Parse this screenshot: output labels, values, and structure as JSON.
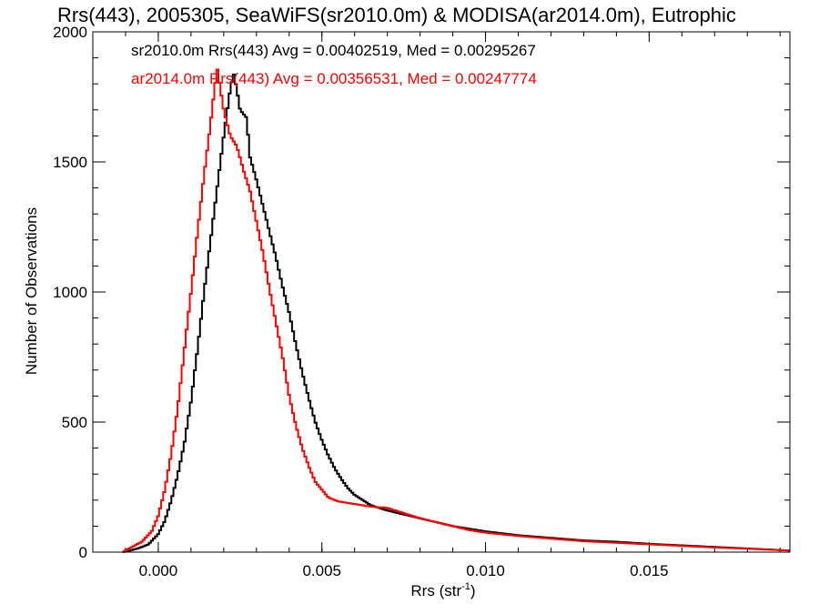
{
  "chart_data": {
    "type": "line",
    "title": "Rrs(443), 2005305, SeaWiFS(sr2010.0m) & MODISA(ar2014.0m), Eutrophic",
    "xlabel_main": "Rrs (str",
    "xlabel_sup": "-1",
    "xlabel_end": ")",
    "ylabel": "Number of Observations",
    "xlim": [
      -0.002,
      0.0193
    ],
    "ylim": [
      0,
      2000
    ],
    "xticks": [
      0.0,
      0.005,
      0.01,
      0.015
    ],
    "xtick_labels": [
      "0.000",
      "0.005",
      "0.010",
      "0.015"
    ],
    "yticks": [
      0,
      500,
      1000,
      1500,
      2000
    ],
    "ytick_labels": [
      "0",
      "500",
      "1000",
      "1500",
      "2000"
    ],
    "series": [
      {
        "name": "sr2010.0m",
        "color": "#000000",
        "annotation": "sr2010.0m Rrs(443) Avg = 0.00402519, Med = 0.00295267",
        "points": [
          [
            -0.0011,
            0
          ],
          [
            -0.0009,
            5
          ],
          [
            -0.0006,
            15
          ],
          [
            -0.0003,
            30
          ],
          [
            0.0,
            70
          ],
          [
            0.0002,
            120
          ],
          [
            0.0004,
            200
          ],
          [
            0.0006,
            300
          ],
          [
            0.0008,
            420
          ],
          [
            0.001,
            580
          ],
          [
            0.0012,
            780
          ],
          [
            0.0014,
            1000
          ],
          [
            0.0016,
            1200
          ],
          [
            0.0018,
            1400
          ],
          [
            0.002,
            1600
          ],
          [
            0.0022,
            1780
          ],
          [
            0.0023,
            1840
          ],
          [
            0.0024,
            1780
          ],
          [
            0.0025,
            1700
          ],
          [
            0.0027,
            1670
          ],
          [
            0.0028,
            1520
          ],
          [
            0.003,
            1430
          ],
          [
            0.0032,
            1330
          ],
          [
            0.0034,
            1230
          ],
          [
            0.0036,
            1130
          ],
          [
            0.0038,
            1020
          ],
          [
            0.004,
            920
          ],
          [
            0.0042,
            800
          ],
          [
            0.0044,
            690
          ],
          [
            0.0046,
            590
          ],
          [
            0.0048,
            500
          ],
          [
            0.005,
            430
          ],
          [
            0.0052,
            370
          ],
          [
            0.0054,
            320
          ],
          [
            0.0056,
            280
          ],
          [
            0.0058,
            245
          ],
          [
            0.006,
            220
          ],
          [
            0.0065,
            180
          ],
          [
            0.007,
            160
          ],
          [
            0.0075,
            145
          ],
          [
            0.008,
            130
          ],
          [
            0.0085,
            115
          ],
          [
            0.009,
            100
          ],
          [
            0.0095,
            90
          ],
          [
            0.01,
            80
          ],
          [
            0.011,
            65
          ],
          [
            0.012,
            55
          ],
          [
            0.013,
            45
          ],
          [
            0.014,
            40
          ],
          [
            0.015,
            32
          ],
          [
            0.016,
            26
          ],
          [
            0.017,
            20
          ],
          [
            0.018,
            14
          ],
          [
            0.019,
            8
          ],
          [
            0.0193,
            6
          ]
        ]
      },
      {
        "name": "ar2014.0m",
        "color": "#ff0000",
        "annotation": "ar2014.0m Rrs(443) Avg = 0.00356531, Med = 0.00247774",
        "points": [
          [
            -0.0011,
            0
          ],
          [
            -0.0008,
            20
          ],
          [
            -0.0005,
            40
          ],
          [
            -0.0002,
            80
          ],
          [
            0.0,
            140
          ],
          [
            0.0002,
            240
          ],
          [
            0.0004,
            380
          ],
          [
            0.0006,
            560
          ],
          [
            0.0008,
            780
          ],
          [
            0.001,
            1000
          ],
          [
            0.0012,
            1230
          ],
          [
            0.0014,
            1450
          ],
          [
            0.0016,
            1650
          ],
          [
            0.0017,
            1760
          ],
          [
            0.0018,
            1860
          ],
          [
            0.0019,
            1780
          ],
          [
            0.002,
            1700
          ],
          [
            0.0022,
            1600
          ],
          [
            0.0024,
            1560
          ],
          [
            0.0026,
            1470
          ],
          [
            0.0028,
            1390
          ],
          [
            0.003,
            1270
          ],
          [
            0.0032,
            1150
          ],
          [
            0.0034,
            1010
          ],
          [
            0.0036,
            880
          ],
          [
            0.0038,
            750
          ],
          [
            0.004,
            600
          ],
          [
            0.0042,
            490
          ],
          [
            0.0044,
            400
          ],
          [
            0.0046,
            330
          ],
          [
            0.0048,
            270
          ],
          [
            0.005,
            240
          ],
          [
            0.0052,
            210
          ],
          [
            0.0055,
            195
          ],
          [
            0.006,
            185
          ],
          [
            0.0065,
            175
          ],
          [
            0.007,
            170
          ],
          [
            0.0075,
            150
          ],
          [
            0.008,
            130
          ],
          [
            0.0085,
            115
          ],
          [
            0.009,
            100
          ],
          [
            0.0095,
            85
          ],
          [
            0.01,
            75
          ],
          [
            0.011,
            62
          ],
          [
            0.012,
            52
          ],
          [
            0.013,
            42
          ],
          [
            0.014,
            36
          ],
          [
            0.015,
            30
          ],
          [
            0.016,
            24
          ],
          [
            0.017,
            18
          ],
          [
            0.018,
            13
          ],
          [
            0.019,
            8
          ],
          [
            0.0193,
            6
          ]
        ]
      }
    ]
  }
}
